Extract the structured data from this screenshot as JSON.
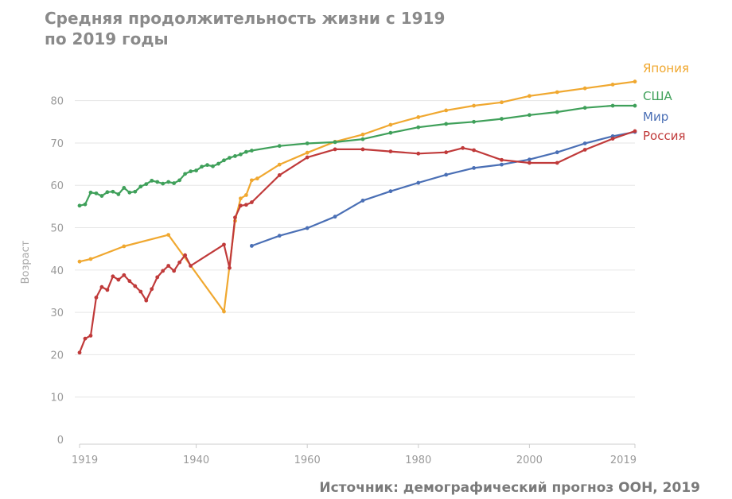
{
  "title": "Средняя продолжительность жизни с 1919 по 2019 годы",
  "source": "Источник: демографический прогноз ООН, 2019",
  "chart_data": {
    "type": "line",
    "title": "Средняя продолжительность жизни с 1919 по 2019 годы",
    "ylabel": "Возраст",
    "xlabel": "",
    "xlim": [
      1919,
      2019
    ],
    "ylim": [
      0,
      85
    ],
    "x_ticks": [
      "1919",
      "1940",
      "1960",
      "1980",
      "2000",
      "2019"
    ],
    "y_ticks": [
      "0",
      "10",
      "20",
      "30",
      "40",
      "50",
      "60",
      "70",
      "80"
    ],
    "grid": "horizontal",
    "legend": "right (line-end labels)",
    "series": [
      {
        "name": "Япония",
        "color": "#f0a830",
        "x": [
          1919,
          1921,
          1927,
          1935,
          1945,
          1947,
          1948,
          1949,
          1950,
          1951,
          1955,
          1960,
          1965,
          1970,
          1975,
          1980,
          1985,
          1990,
          1995,
          2000,
          2005,
          2010,
          2015,
          2019
        ],
        "y": [
          42.0,
          42.6,
          45.6,
          48.3,
          30.2,
          51.6,
          56.9,
          57.7,
          61.2,
          61.6,
          64.9,
          67.7,
          70.3,
          72.0,
          74.3,
          76.1,
          77.7,
          78.8,
          79.6,
          81.1,
          82.0,
          82.9,
          83.8,
          84.5
        ]
      },
      {
        "name": "США",
        "color": "#3fa05a",
        "x": [
          1919,
          1920,
          1921,
          1922,
          1923,
          1924,
          1925,
          1926,
          1927,
          1928,
          1929,
          1930,
          1931,
          1932,
          1933,
          1934,
          1935,
          1936,
          1937,
          1938,
          1939,
          1940,
          1941,
          1942,
          1943,
          1944,
          1945,
          1946,
          1947,
          1948,
          1949,
          1950,
          1955,
          1960,
          1965,
          1970,
          1975,
          1980,
          1985,
          1990,
          1995,
          2000,
          2005,
          2010,
          2015,
          2019
        ],
        "y": [
          55.2,
          55.5,
          58.3,
          58.1,
          57.5,
          58.4,
          58.5,
          57.9,
          59.4,
          58.3,
          58.5,
          59.7,
          60.3,
          61.1,
          60.8,
          60.4,
          60.8,
          60.5,
          61.2,
          62.7,
          63.3,
          63.5,
          64.4,
          64.8,
          64.5,
          65.1,
          65.9,
          66.5,
          66.9,
          67.3,
          67.9,
          68.2,
          69.3,
          69.9,
          70.2,
          70.9,
          72.4,
          73.7,
          74.5,
          75.0,
          75.7,
          76.6,
          77.3,
          78.3,
          78.8,
          78.8
        ]
      },
      {
        "name": "Мир",
        "color": "#4a6fb5",
        "x": [
          1950,
          1955,
          1960,
          1965,
          1970,
          1975,
          1980,
          1985,
          1990,
          1995,
          2000,
          2005,
          2010,
          2015,
          2019
        ],
        "y": [
          45.7,
          48.1,
          49.9,
          52.6,
          56.4,
          58.6,
          60.6,
          62.5,
          64.1,
          64.9,
          66.1,
          67.8,
          69.9,
          71.6,
          72.6
        ]
      },
      {
        "name": "Россия",
        "color": "#c03a3a",
        "x": [
          1919,
          1920,
          1921,
          1922,
          1923,
          1924,
          1925,
          1926,
          1927,
          1928,
          1929,
          1930,
          1931,
          1932,
          1933,
          1934,
          1935,
          1936,
          1937,
          1938,
          1939,
          1945,
          1946,
          1947,
          1948,
          1949,
          1950,
          1955,
          1960,
          1965,
          1970,
          1975,
          1980,
          1985,
          1988,
          1990,
          1995,
          2000,
          2005,
          2010,
          2015,
          2019
        ],
        "y": [
          20.5,
          23.8,
          24.5,
          33.5,
          36.0,
          35.3,
          38.5,
          37.7,
          38.8,
          37.4,
          36.2,
          34.9,
          32.8,
          35.5,
          38.3,
          39.8,
          41.0,
          39.8,
          41.8,
          43.5,
          41.0,
          46.0,
          40.5,
          52.4,
          55.2,
          55.4,
          56.0,
          62.4,
          66.6,
          68.5,
          68.5,
          68.0,
          67.5,
          67.8,
          68.8,
          68.3,
          66.0,
          65.3,
          65.3,
          68.4,
          71.0,
          72.8
        ]
      }
    ]
  }
}
